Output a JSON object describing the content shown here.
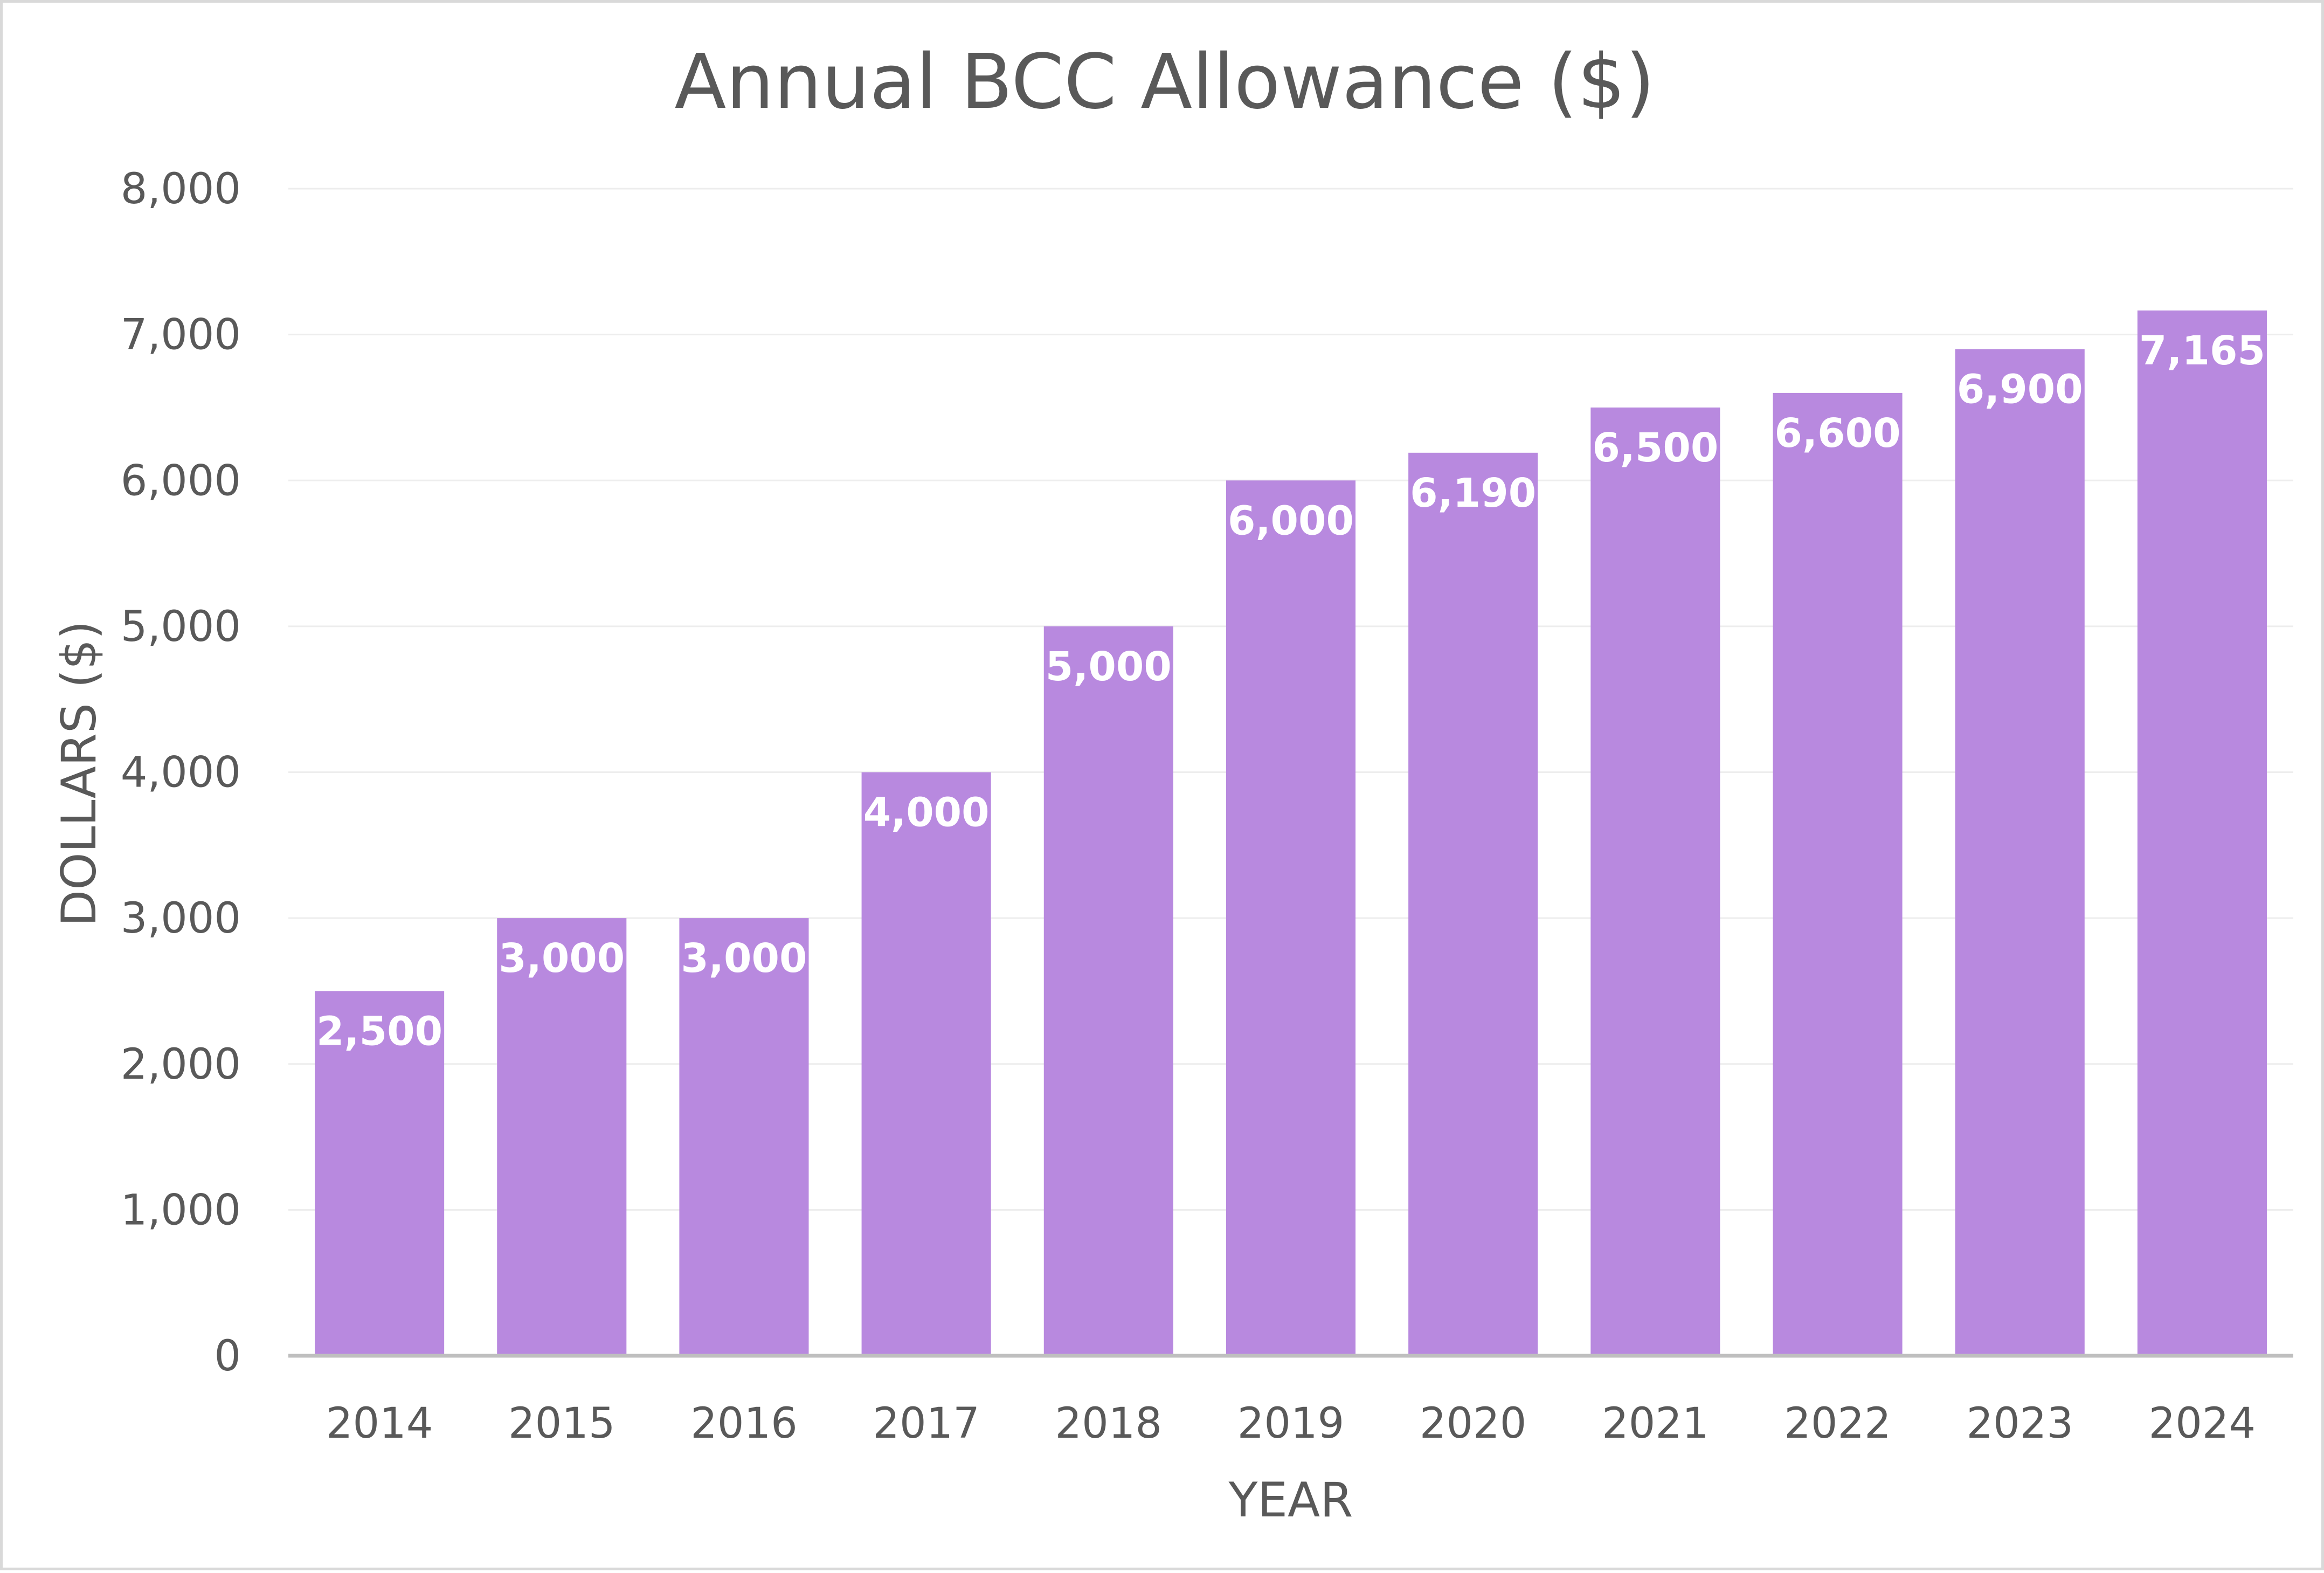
{
  "chart_data": {
    "type": "bar",
    "title": "Annual BCC Allowance ($)",
    "xlabel": "YEAR",
    "ylabel": "DOLLARS ($)",
    "categories": [
      "2014",
      "2015",
      "2016",
      "2017",
      "2018",
      "2019",
      "2020",
      "2021",
      "2022",
      "2023",
      "2024"
    ],
    "values": [
      2500,
      3000,
      3000,
      4000,
      5000,
      6000,
      6190,
      6500,
      6600,
      6900,
      7165
    ],
    "data_labels": [
      "2,500",
      "3,000",
      "3,000",
      "4,000",
      "5,000",
      "6,000",
      "6,190",
      "6,500",
      "6,600",
      "6,900",
      "7,165"
    ],
    "ylim": [
      0,
      8000
    ],
    "yticks": [
      0,
      1000,
      2000,
      3000,
      4000,
      5000,
      6000,
      7000,
      8000
    ],
    "ytick_labels": [
      "0",
      "1,000",
      "2,000",
      "3,000",
      "4,000",
      "5,000",
      "6,000",
      "7,000",
      "8,000"
    ],
    "bar_color": "#b889df",
    "grid": true,
    "legend": "none"
  }
}
